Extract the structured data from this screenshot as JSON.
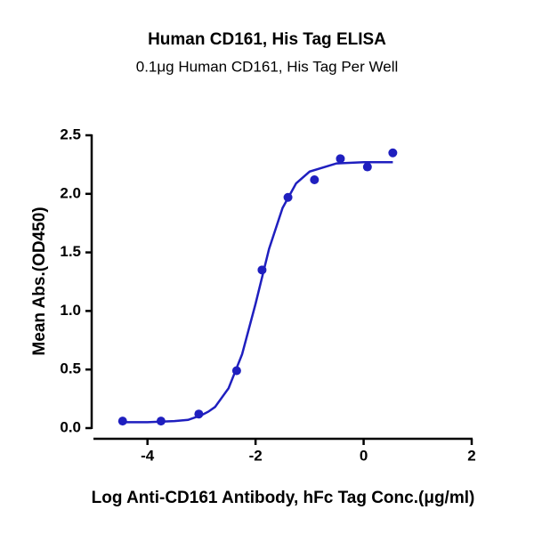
{
  "chart_data": {
    "type": "scatter",
    "title": "Human CD161, His Tag  ELISA",
    "subtitle": "0.1μg Human CD161, His Tag Per Well",
    "x_label": "Log Anti-CD161 Antibody, hFc Tag Conc.(μg/ml)",
    "y_label": "Mean Abs.(OD450)",
    "xlim": [
      -5,
      2
    ],
    "xticks": [
      -4,
      -2,
      0,
      2
    ],
    "ylim": [
      0,
      2.5
    ],
    "yticks": [
      {
        "value": 0,
        "label": "0.0"
      },
      0.5,
      {
        "value": 1,
        "label": "1.0"
      },
      1.5,
      {
        "value": 2,
        "label": "2.0"
      },
      2.5
    ],
    "points": {
      "color": "#1f1fbf",
      "x": [
        -4.46,
        -3.75,
        -3.05,
        -2.35,
        -1.88,
        -1.4,
        -0.91,
        -0.43,
        0.07,
        0.54
      ],
      "values": [
        0.06,
        0.06,
        0.12,
        0.49,
        1.35,
        1.97,
        2.12,
        2.3,
        2.23,
        2.35
      ]
    },
    "curve": {
      "color": "#1f1fbf",
      "x": [
        -4.46,
        -4,
        -3.5,
        -3.25,
        -3,
        -2.875,
        -2.75,
        -2.5,
        -2.25,
        -2,
        -1.75,
        -1.5,
        -1.25,
        -1,
        -0.5,
        0,
        0.54
      ],
      "values": [
        0.05,
        0.05,
        0.06,
        0.07,
        0.11,
        0.14,
        0.18,
        0.34,
        0.63,
        1.06,
        1.53,
        1.88,
        2.09,
        2.19,
        2.26,
        2.27,
        2.27
      ]
    }
  }
}
